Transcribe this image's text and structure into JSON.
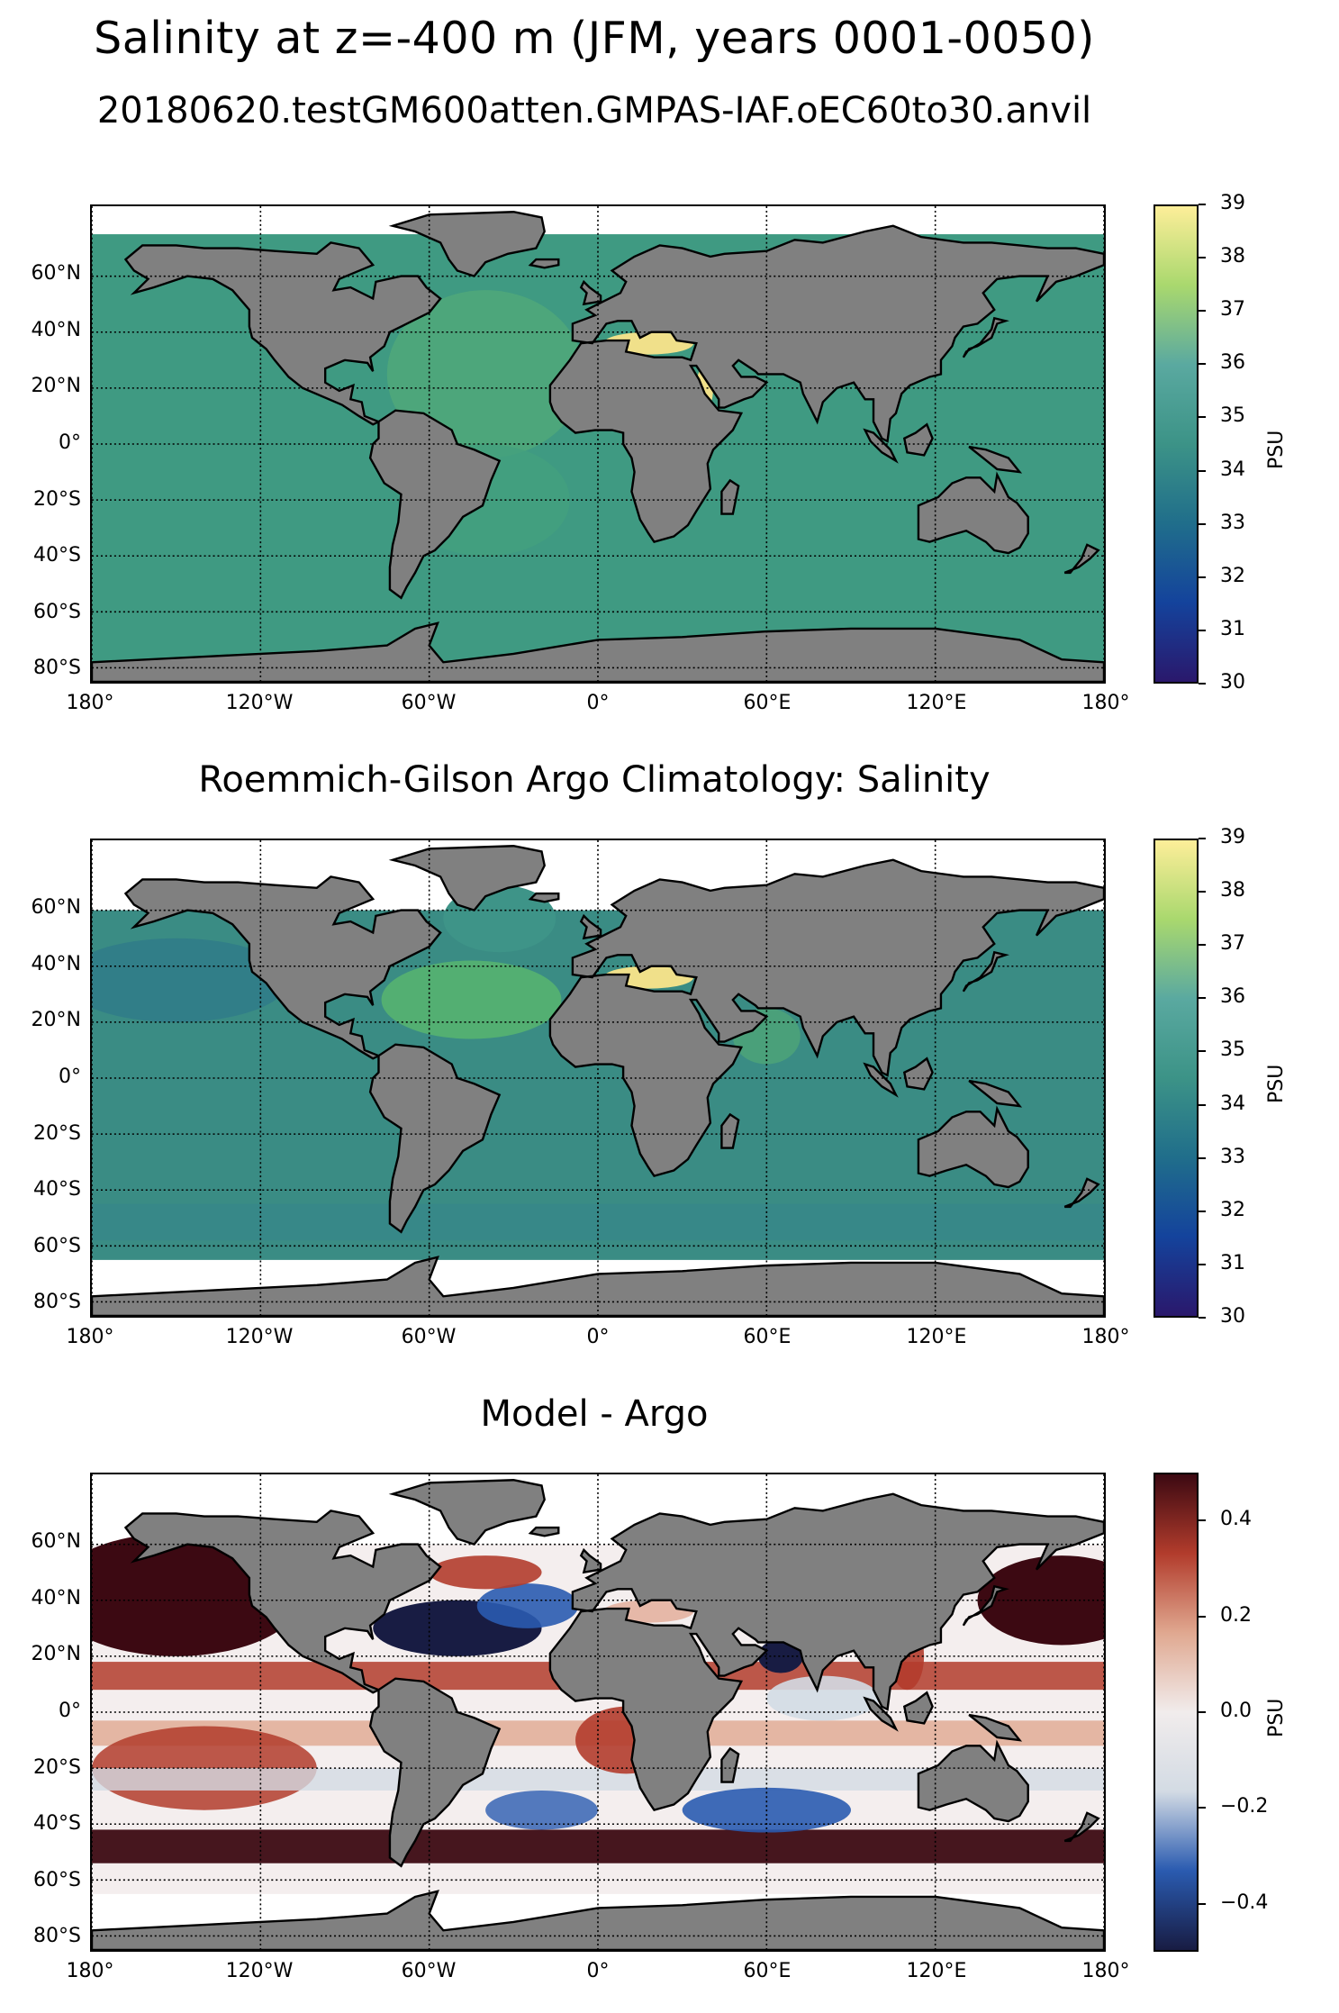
{
  "title": "Salinity at z=-400 m (JFM, years 0001-0050)",
  "panels": [
    {
      "id": "model",
      "title": "20180620.testGM600atten.GMPAS-IAF.oEC60to30.anvil",
      "colormap": "haline",
      "colorbar": {
        "label": "PSU",
        "min": 30,
        "max": 39,
        "ticks": [
          "30",
          "31",
          "32",
          "33",
          "34",
          "35",
          "36",
          "37",
          "38",
          "39"
        ]
      }
    },
    {
      "id": "obs",
      "title": "Roemmich-Gilson Argo Climatology: Salinity",
      "colormap": "haline",
      "colorbar": {
        "label": "PSU",
        "min": 30,
        "max": 39,
        "ticks": [
          "30",
          "31",
          "32",
          "33",
          "34",
          "35",
          "36",
          "37",
          "38",
          "39"
        ]
      }
    },
    {
      "id": "diff",
      "title": "Model - Argo",
      "colormap": "balance",
      "colorbar": {
        "label": "PSU",
        "min": -0.5,
        "max": 0.5,
        "ticks": [
          "−0.4",
          "−0.2",
          "0.0",
          "0.2",
          "0.4"
        ],
        "tick_values": [
          -0.4,
          -0.2,
          0.0,
          0.2,
          0.4
        ]
      }
    }
  ],
  "map": {
    "extent": {
      "lon": [
        -180,
        180
      ],
      "lat": [
        -85,
        85
      ]
    },
    "lat_ticks": [
      {
        "value": 60,
        "label": "60°N"
      },
      {
        "value": 40,
        "label": "40°N"
      },
      {
        "value": 20,
        "label": "20°N"
      },
      {
        "value": 0,
        "label": "0°"
      },
      {
        "value": -20,
        "label": "20°S"
      },
      {
        "value": -40,
        "label": "40°S"
      },
      {
        "value": -60,
        "label": "60°S"
      },
      {
        "value": -80,
        "label": "80°S"
      }
    ],
    "lon_ticks": [
      {
        "value": -180,
        "label": "180°"
      },
      {
        "value": -120,
        "label": "120°W"
      },
      {
        "value": -60,
        "label": "60°W"
      },
      {
        "value": 0,
        "label": "0°"
      },
      {
        "value": 60,
        "label": "60°E"
      },
      {
        "value": 120,
        "label": "120°E"
      },
      {
        "value": 180,
        "label": "180°"
      }
    ],
    "land_color": "#808080",
    "no_data_color": "#ffffff"
  },
  "colors": {
    "haline": [
      "#2a186c",
      "#14439c",
      "#206e8b",
      "#3c9387",
      "#5aa9a0",
      "#a9d86e",
      "#fdee99"
    ],
    "balance": [
      "#181c43",
      "#2a5bb0",
      "#d3dbe4",
      "#f1ecec",
      "#e0a890",
      "#b23c2c",
      "#3c0912"
    ],
    "model_ocean": "#3f9a82",
    "model_atlantic": "#4fa77a",
    "med": "#f0e08a",
    "obs_ocean": "#3a8c84",
    "obs_atlantic": "#57b370"
  }
}
